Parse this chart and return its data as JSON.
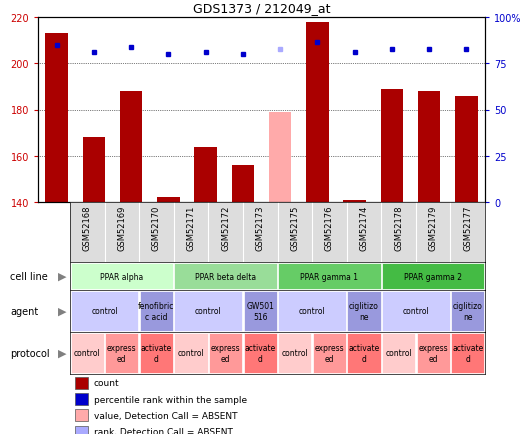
{
  "title": "GDS1373 / 212049_at",
  "samples": [
    "GSM52168",
    "GSM52169",
    "GSM52170",
    "GSM52171",
    "GSM52172",
    "GSM52173",
    "GSM52175",
    "GSM52176",
    "GSM52174",
    "GSM52178",
    "GSM52179",
    "GSM52177"
  ],
  "bar_values": [
    213,
    168,
    188,
    142,
    164,
    156,
    179,
    218,
    141,
    189,
    188,
    186
  ],
  "bar_colors": [
    "#aa0000",
    "#aa0000",
    "#aa0000",
    "#aa0000",
    "#aa0000",
    "#aa0000",
    "#ffaaaa",
    "#aa0000",
    "#aa0000",
    "#aa0000",
    "#aa0000",
    "#aa0000"
  ],
  "rank_values": [
    208,
    205,
    207,
    204,
    205,
    204,
    206,
    209,
    205,
    206,
    206,
    206
  ],
  "rank_colors": [
    "#0000cc",
    "#0000cc",
    "#0000cc",
    "#0000cc",
    "#0000cc",
    "#0000cc",
    "#aaaaff",
    "#0000cc",
    "#0000cc",
    "#0000cc",
    "#0000cc",
    "#0000cc"
  ],
  "bar_base": 140,
  "ylim_left": [
    140,
    220
  ],
  "ylim_right": [
    0,
    100
  ],
  "yticks_left": [
    140,
    160,
    180,
    200,
    220
  ],
  "yticks_right": [
    0,
    25,
    50,
    75,
    100
  ],
  "cell_line_groups": [
    {
      "label": "PPAR alpha",
      "start": 0,
      "end": 3,
      "color": "#ccffcc"
    },
    {
      "label": "PPAR beta delta",
      "start": 3,
      "end": 6,
      "color": "#99dd99"
    },
    {
      "label": "PPAR gamma 1",
      "start": 6,
      "end": 9,
      "color": "#66cc66"
    },
    {
      "label": "PPAR gamma 2",
      "start": 9,
      "end": 12,
      "color": "#44bb44"
    }
  ],
  "agent_groups": [
    {
      "label": "control",
      "start": 0,
      "end": 2,
      "color": "#ccccff"
    },
    {
      "label": "fenofibric\nc acid",
      "start": 2,
      "end": 3,
      "color": "#9999dd"
    },
    {
      "label": "control",
      "start": 3,
      "end": 5,
      "color": "#ccccff"
    },
    {
      "label": "GW501\n516",
      "start": 5,
      "end": 6,
      "color": "#9999dd"
    },
    {
      "label": "control",
      "start": 6,
      "end": 8,
      "color": "#ccccff"
    },
    {
      "label": "ciglitizo\nne",
      "start": 8,
      "end": 9,
      "color": "#9999dd"
    },
    {
      "label": "control",
      "start": 9,
      "end": 11,
      "color": "#ccccff"
    },
    {
      "label": "ciglitizo\nne",
      "start": 11,
      "end": 12,
      "color": "#9999dd"
    }
  ],
  "protocol_groups": [
    {
      "label": "control",
      "start": 0,
      "end": 1,
      "color": "#ffcccc"
    },
    {
      "label": "express\ned",
      "start": 1,
      "end": 2,
      "color": "#ff9999"
    },
    {
      "label": "activate\nd",
      "start": 2,
      "end": 3,
      "color": "#ff7777"
    },
    {
      "label": "control",
      "start": 3,
      "end": 4,
      "color": "#ffcccc"
    },
    {
      "label": "express\ned",
      "start": 4,
      "end": 5,
      "color": "#ff9999"
    },
    {
      "label": "activate\nd",
      "start": 5,
      "end": 6,
      "color": "#ff7777"
    },
    {
      "label": "control",
      "start": 6,
      "end": 7,
      "color": "#ffcccc"
    },
    {
      "label": "express\ned",
      "start": 7,
      "end": 8,
      "color": "#ff9999"
    },
    {
      "label": "activate\nd",
      "start": 8,
      "end": 9,
      "color": "#ff7777"
    },
    {
      "label": "control",
      "start": 9,
      "end": 10,
      "color": "#ffcccc"
    },
    {
      "label": "express\ned",
      "start": 10,
      "end": 11,
      "color": "#ff9999"
    },
    {
      "label": "activate\nd",
      "start": 11,
      "end": 12,
      "color": "#ff7777"
    }
  ],
  "legend_items": [
    {
      "label": "count",
      "color": "#aa0000"
    },
    {
      "label": "percentile rank within the sample",
      "color": "#0000cc"
    },
    {
      "label": "value, Detection Call = ABSENT",
      "color": "#ffaaaa"
    },
    {
      "label": "rank, Detection Call = ABSENT",
      "color": "#aaaaff"
    }
  ],
  "row_labels": [
    "cell line",
    "agent",
    "protocol"
  ],
  "left_yaxis_color": "#cc0000",
  "right_yaxis_color": "#0000cc",
  "bar_width": 0.6,
  "bg_color": "#ffffff",
  "grid_color": "#000000",
  "sample_label_bg": "#dddddd"
}
